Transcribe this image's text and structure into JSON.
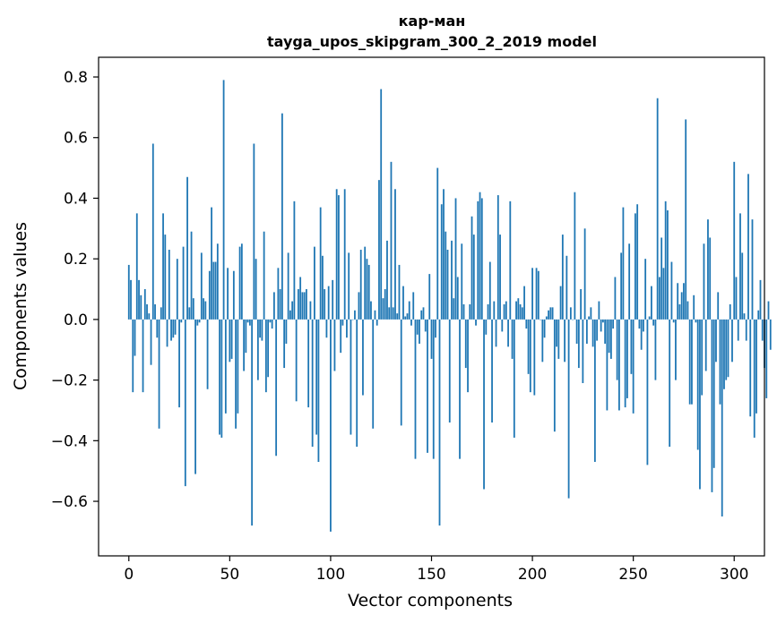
{
  "chart_data": {
    "type": "bar",
    "title": "кар-ман",
    "subtitle": "tayga_upos_skipgram_300_2_2019 model",
    "xlabel": "Vector components",
    "ylabel": "Components values",
    "xlim": [
      -15,
      315
    ],
    "ylim": [
      -0.78,
      0.865
    ],
    "xticks": [
      0,
      50,
      100,
      150,
      200,
      250,
      300
    ],
    "xtick_labels": [
      "0",
      "50",
      "100",
      "150",
      "200",
      "250",
      "300"
    ],
    "yticks": [
      -0.6,
      -0.4,
      -0.2,
      0.0,
      0.2,
      0.4,
      0.6,
      0.8
    ],
    "ytick_labels": [
      "−0.6",
      "−0.4",
      "−0.2",
      "0.0",
      "0.2",
      "0.4",
      "0.6",
      "0.8"
    ],
    "bar_color": "#1f77b4",
    "grid": false,
    "values": [
      0.18,
      0.13,
      -0.24,
      -0.12,
      0.35,
      0.13,
      0.08,
      -0.24,
      0.1,
      0.05,
      0.02,
      -0.15,
      0.58,
      0.05,
      -0.06,
      -0.36,
      0.04,
      0.35,
      0.28,
      -0.09,
      0.23,
      -0.07,
      -0.06,
      -0.05,
      0.2,
      -0.29,
      -0.01,
      0.24,
      -0.55,
      0.47,
      0.04,
      0.29,
      0.07,
      -0.51,
      -0.02,
      -0.01,
      0.22,
      0.07,
      0.06,
      -0.23,
      0.16,
      0.37,
      0.19,
      0.19,
      0.25,
      -0.38,
      -0.39,
      0.79,
      -0.31,
      0.17,
      -0.14,
      -0.13,
      0.16,
      -0.36,
      -0.31,
      0.24,
      0.25,
      -0.17,
      -0.11,
      -0.01,
      -0.02,
      -0.68,
      0.58,
      0.2,
      -0.2,
      -0.06,
      -0.07,
      0.29,
      -0.24,
      -0.19,
      -0.01,
      -0.03,
      0.09,
      -0.45,
      0.17,
      0.1,
      0.68,
      -0.16,
      -0.08,
      0.22,
      0.03,
      0.06,
      0.39,
      -0.27,
      0.1,
      0.14,
      0.09,
      0.09,
      0.1,
      -0.29,
      0.06,
      -0.42,
      0.24,
      -0.38,
      -0.47,
      0.37,
      0.21,
      0.1,
      -0.06,
      0.11,
      -0.7,
      0.13,
      -0.17,
      0.43,
      0.41,
      -0.11,
      -0.02,
      0.43,
      -0.06,
      0.22,
      -0.38,
      0.0,
      0.03,
      -0.42,
      0.09,
      0.23,
      -0.25,
      0.24,
      0.2,
      0.18,
      0.06,
      -0.36,
      0.03,
      -0.02,
      0.46,
      0.76,
      0.07,
      0.1,
      0.26,
      0.04,
      0.52,
      0.04,
      0.43,
      0.02,
      0.18,
      -0.35,
      0.11,
      0.01,
      0.02,
      0.06,
      -0.02,
      0.09,
      -0.46,
      -0.05,
      -0.08,
      0.03,
      0.04,
      -0.04,
      -0.44,
      0.15,
      -0.13,
      -0.46,
      -0.06,
      0.5,
      -0.68,
      0.38,
      0.43,
      0.29,
      0.23,
      -0.34,
      0.26,
      0.07,
      0.4,
      0.14,
      -0.46,
      0.25,
      0.05,
      -0.16,
      -0.24,
      0.05,
      0.34,
      0.28,
      -0.02,
      0.39,
      0.42,
      0.4,
      -0.56,
      -0.05,
      0.05,
      0.19,
      -0.34,
      0.06,
      -0.09,
      0.41,
      0.28,
      -0.04,
      0.05,
      0.06,
      -0.09,
      0.39,
      -0.13,
      -0.39,
      0.06,
      0.07,
      0.05,
      0.04,
      0.11,
      -0.03,
      -0.18,
      -0.24,
      0.17,
      -0.25,
      0.17,
      0.16,
      0.0,
      -0.14,
      -0.06,
      0.01,
      0.03,
      0.04,
      0.04,
      -0.37,
      -0.09,
      -0.13,
      0.11,
      0.28,
      -0.14,
      0.21,
      -0.59,
      0.04,
      0.0,
      0.42,
      -0.08,
      -0.16,
      0.1,
      -0.21,
      0.3,
      -0.08,
      0.01,
      0.04,
      -0.09,
      -0.47,
      -0.07,
      0.06,
      -0.04,
      -0.01,
      -0.08,
      -0.3,
      -0.11,
      -0.13,
      -0.03,
      0.14,
      -0.2,
      -0.3,
      0.22,
      0.37,
      -0.29,
      -0.26,
      0.25,
      -0.18,
      -0.31,
      0.35,
      0.38,
      -0.03,
      -0.1,
      -0.04,
      0.2,
      -0.48,
      0.01,
      0.11,
      -0.02,
      -0.2,
      0.73,
      0.14,
      0.27,
      0.17,
      0.39,
      0.36,
      -0.42,
      0.19,
      -0.01,
      -0.2,
      0.12,
      0.05,
      0.09,
      0.12,
      0.66,
      0.06,
      -0.28,
      -0.28,
      0.08,
      -0.01,
      -0.43,
      -0.56,
      -0.25,
      0.25,
      -0.17,
      0.33,
      0.27,
      -0.57,
      -0.49,
      -0.14,
      0.09,
      -0.28,
      -0.65,
      -0.23,
      -0.2,
      -0.19,
      0.05,
      -0.14,
      0.52,
      0.14,
      -0.07,
      0.35,
      0.22,
      0.02,
      -0.07,
      0.48,
      -0.32,
      0.33,
      -0.39,
      -0.31,
      0.03,
      0.13,
      -0.07,
      -0.16,
      -0.26,
      0.06,
      -0.1
    ]
  }
}
